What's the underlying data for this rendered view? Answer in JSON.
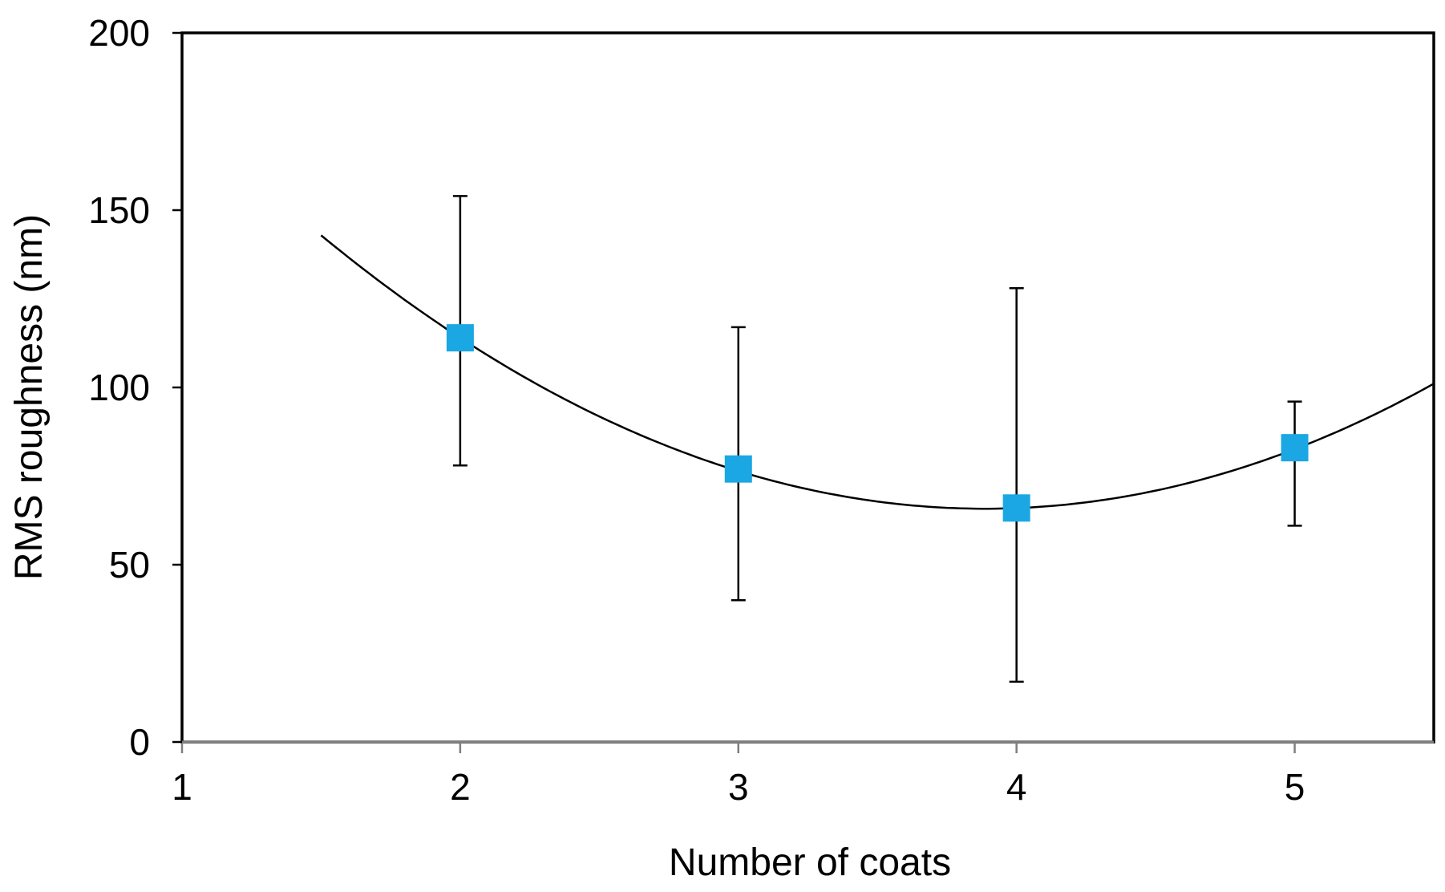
{
  "chart_data": {
    "type": "scatter",
    "title": "",
    "xlabel": "Number  of coats",
    "ylabel": "RMS roughness  (nm)",
    "xlim": [
      1,
      5.5
    ],
    "ylim": [
      0,
      200
    ],
    "x_ticks": [
      "1",
      "2",
      "3",
      "4",
      "5"
    ],
    "y_ticks": [
      "0",
      "50",
      "100",
      "150",
      "200"
    ],
    "grid": false,
    "legend": "none",
    "series": [
      {
        "x": [
          2,
          3,
          4,
          5
        ],
        "y": [
          114,
          77,
          66,
          83
        ],
        "error_low": [
          78,
          40,
          17,
          61
        ],
        "error_high": [
          154,
          117,
          128,
          96
        ],
        "color": "#1aa7e3",
        "marker": "square"
      }
    ],
    "trendline": {
      "type": "polynomial-2",
      "x_range": [
        1.5,
        5.5
      ],
      "points": [
        [
          1.5,
          143
        ],
        [
          2,
          114
        ],
        [
          3,
          76
        ],
        [
          3.75,
          66
        ],
        [
          4,
          66.5
        ],
        [
          5,
          82.5
        ],
        [
          5.5,
          101
        ]
      ],
      "color": "#000000"
    }
  }
}
